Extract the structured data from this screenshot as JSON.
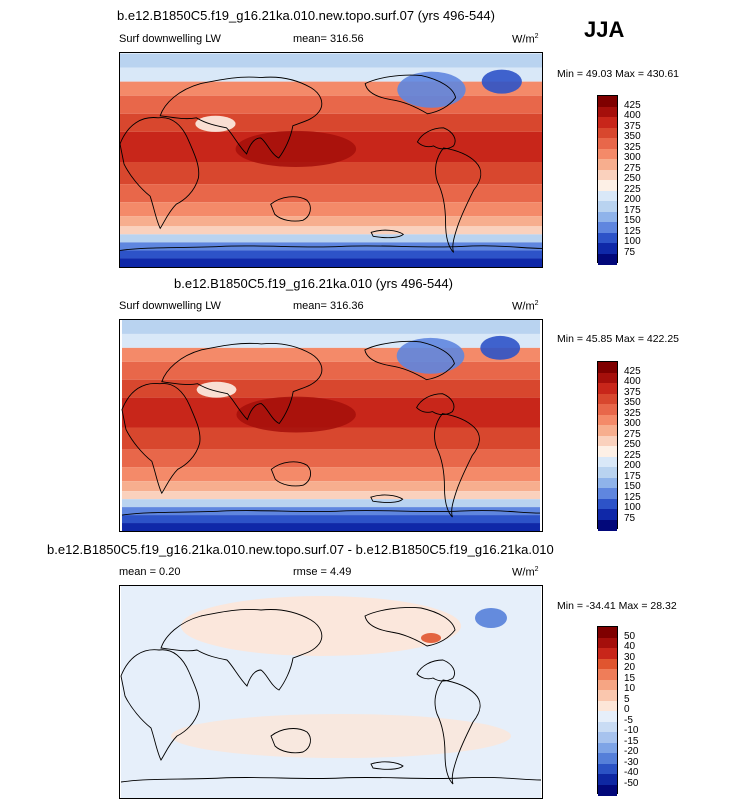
{
  "season_label": "JJA",
  "colors": {
    "ocean_warm": "#d8472e",
    "ocean_mid": "#f39a72",
    "cool": "#b9d3f0",
    "cold": "#2d53c8",
    "coast": "#000000"
  },
  "chart_data": [
    {
      "type": "heatmap",
      "title": "b.e12.B1850C5.f19_g16.21ka.010.new.topo.surf.07 (yrs 496-544)",
      "variable": "Surf downwelling LW",
      "mean_text": "mean= 316.56",
      "units": "W/m",
      "units_sup": "2",
      "minmax_text": "Min =  49.03 Max = 430.61",
      "min": 49.03,
      "max": 430.61,
      "mean": 316.56,
      "colorbar": {
        "labels": [
          "425",
          "400",
          "375",
          "350",
          "325",
          "300",
          "275",
          "250",
          "225",
          "200",
          "175",
          "150",
          "125",
          "100",
          "75"
        ],
        "colors": [
          "#7f0000",
          "#a50f0b",
          "#c8261a",
          "#d8472e",
          "#e8674a",
          "#f48a69",
          "#f7ae8e",
          "#fad1bd",
          "#fdf0e6",
          "#d9e8f8",
          "#b9d3f0",
          "#8fb3ea",
          "#5f86df",
          "#2d53c8",
          "#0f28a8",
          "#02087a"
        ]
      }
    },
    {
      "type": "heatmap",
      "title": "b.e12.B1850C5.f19_g16.21ka.010 (yrs 496-544)",
      "variable": "Surf downwelling LW",
      "mean_text": "mean= 316.36",
      "units": "W/m",
      "units_sup": "2",
      "minmax_text": "Min =  45.85 Max = 422.25",
      "min": 45.85,
      "max": 422.25,
      "mean": 316.36,
      "colorbar": {
        "labels": [
          "425",
          "400",
          "375",
          "350",
          "325",
          "300",
          "275",
          "250",
          "225",
          "200",
          "175",
          "150",
          "125",
          "100",
          "75"
        ],
        "colors": [
          "#7f0000",
          "#a50f0b",
          "#c8261a",
          "#d8472e",
          "#e8674a",
          "#f48a69",
          "#f7ae8e",
          "#fad1bd",
          "#fdf0e6",
          "#d9e8f8",
          "#b9d3f0",
          "#8fb3ea",
          "#5f86df",
          "#2d53c8",
          "#0f28a8",
          "#02087a"
        ]
      }
    },
    {
      "type": "heatmap",
      "title": "b.e12.B1850C5.f19_g16.21ka.010.new.topo.surf.07 - b.e12.B1850C5.f19_g16.21ka.010",
      "mean_text": "mean =   0.20",
      "rmse_text": "rmse =   4.49",
      "units": "W/m",
      "units_sup": "2",
      "minmax_text": "Min = -34.41 Max =  28.32",
      "min": -34.41,
      "max": 28.32,
      "mean": 0.2,
      "rmse": 4.49,
      "colorbar": {
        "labels": [
          "50",
          "40",
          "30",
          "20",
          "15",
          "10",
          "5",
          "0",
          "-5",
          "-10",
          "-15",
          "-20",
          "-30",
          "-40",
          "-50"
        ],
        "colors": [
          "#7f0000",
          "#a50f0b",
          "#c8261a",
          "#e0552f",
          "#ef7d59",
          "#f6a583",
          "#fac7ae",
          "#fde6d8",
          "#e6effa",
          "#c9dcf4",
          "#a7c3ee",
          "#7ea4e6",
          "#557fd9",
          "#2b52c4",
          "#0e27a2",
          "#02087a"
        ]
      }
    }
  ]
}
